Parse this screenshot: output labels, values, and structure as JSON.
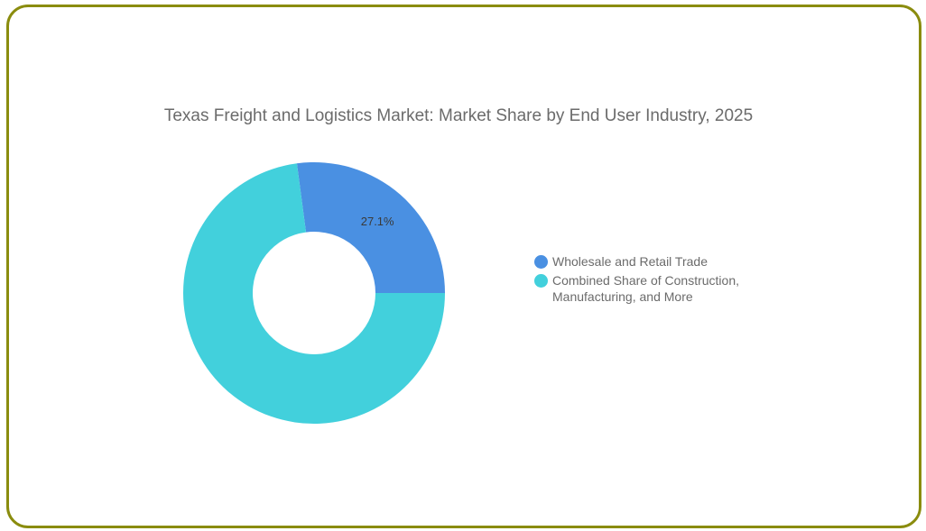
{
  "chart_data": {
    "type": "pie",
    "title": "Texas Freight and Logistics Market: Market Share by End User Industry, 2025",
    "donut": true,
    "legend_position": "right",
    "series": [
      {
        "name": "Wholesale and Retail Trade",
        "value": 27.1,
        "color": "#4a90e2",
        "label": "27.1%"
      },
      {
        "name": "Combined Share of Construction, Manufacturing, and More",
        "value": 72.9,
        "color": "#42d0dc",
        "label": ""
      }
    ]
  }
}
